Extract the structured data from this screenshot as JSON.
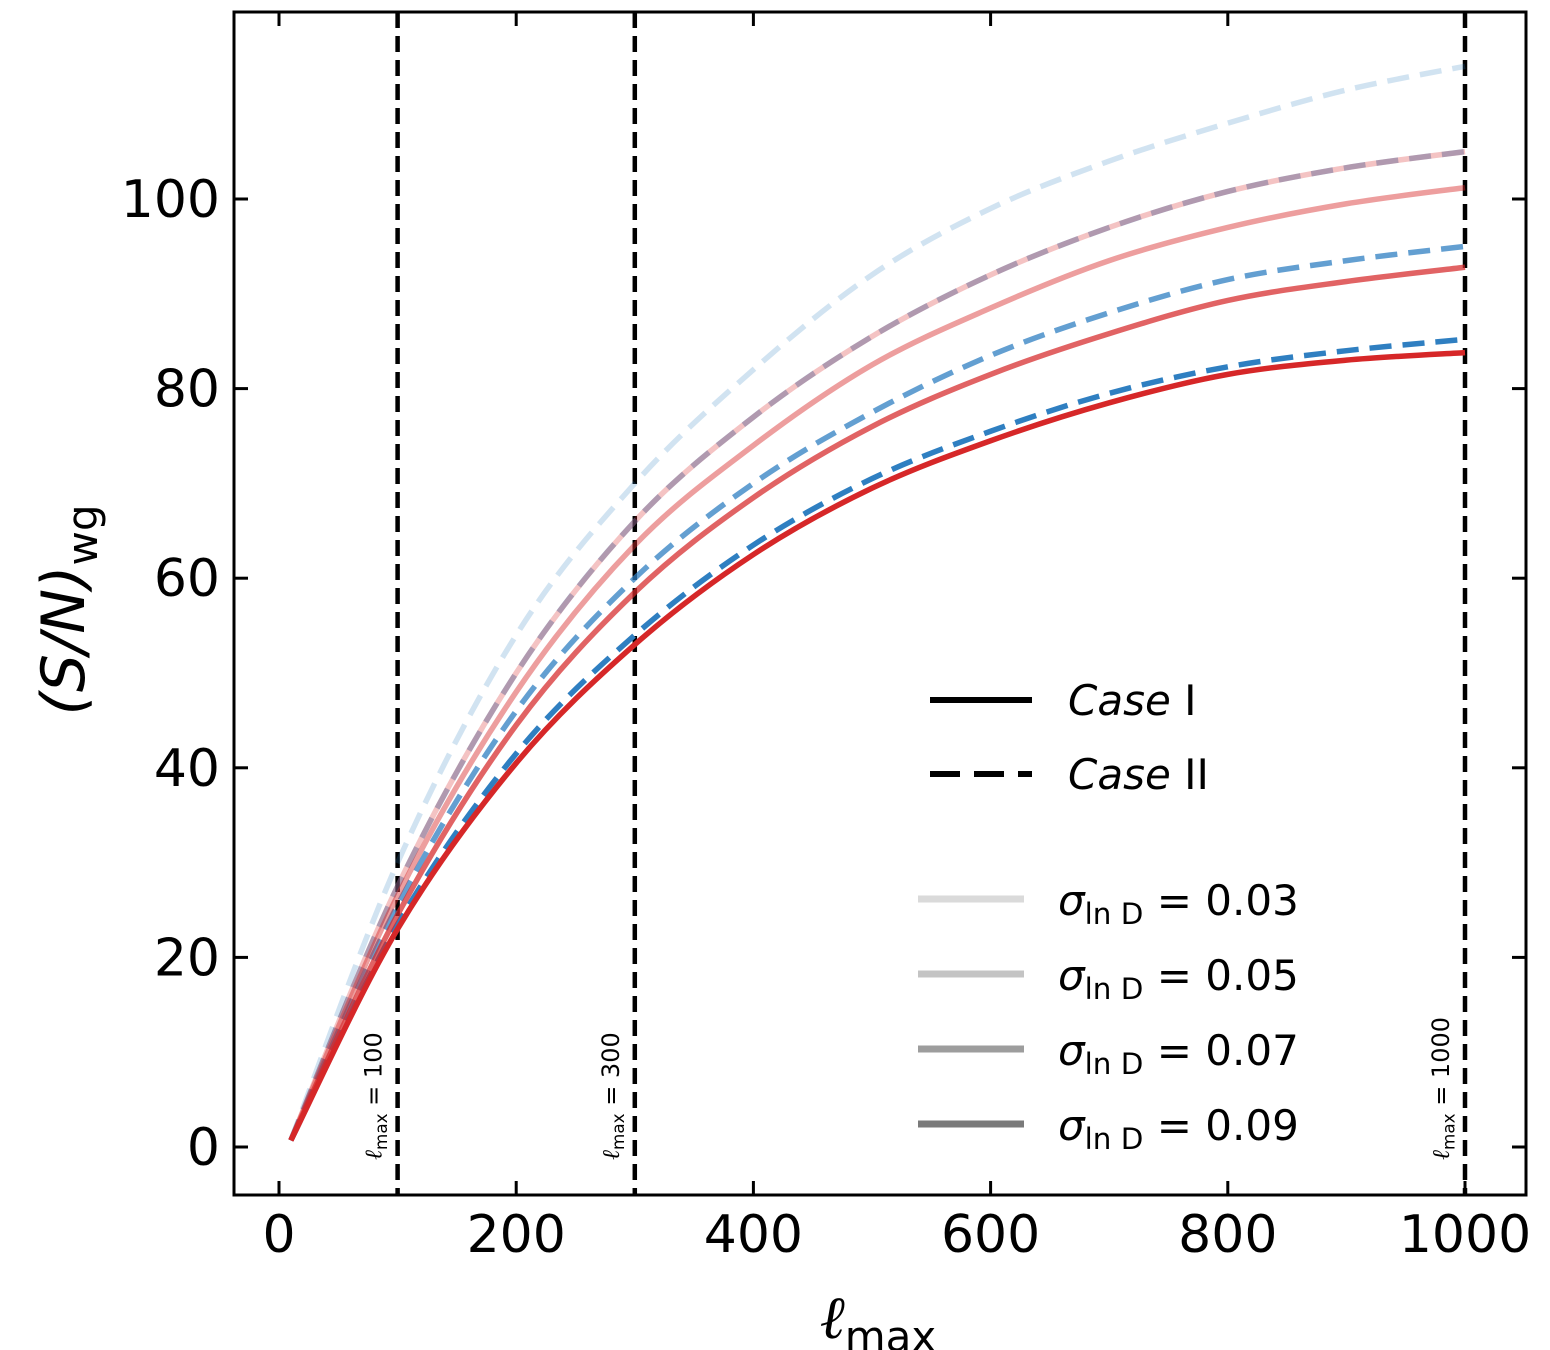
{
  "chart_data": {
    "type": "line",
    "title": "",
    "xlabel": {
      "symbol": "ℓ",
      "sub": "max"
    },
    "ylabel": {
      "text": "(S/N)",
      "sub": "wg"
    },
    "xlim": [
      -40,
      1050
    ],
    "ylim": [
      -5,
      120
    ],
    "xticks": [
      0,
      200,
      400,
      600,
      800,
      1000
    ],
    "yticks": [
      0,
      20,
      40,
      60,
      80,
      100
    ],
    "vlines": [
      {
        "x": 100,
        "label_symbol": "ℓ",
        "label_sub": "max",
        "label_rest": " = 100"
      },
      {
        "x": 300,
        "label_symbol": "ℓ",
        "label_sub": "max",
        "label_rest": " = 300"
      },
      {
        "x": 1000,
        "label_symbol": "ℓ",
        "label_sub": "max",
        "label_rest": " = 1000"
      }
    ],
    "series": [
      {
        "name": "Case II, σ = 0.03",
        "case": "II",
        "sigma": 0.03,
        "color": "#2f7fc1",
        "opacity": 0.22,
        "x": [
          10,
          100,
          200,
          300,
          400,
          500,
          600,
          700,
          800,
          900,
          1000
        ],
        "y": [
          0.7,
          30,
          54,
          70,
          82,
          92,
          99,
          104,
          108,
          111.5,
          114
        ]
      },
      {
        "name": "Case II, σ = 0.05",
        "case": "II",
        "sigma": 0.05,
        "color": "#2f7fc1",
        "opacity": 0.45,
        "x": [
          10,
          100,
          200,
          300,
          400,
          500,
          600,
          700,
          800,
          900,
          1000
        ],
        "y": [
          0.7,
          27.5,
          50,
          66,
          77,
          85.5,
          92,
          97,
          100.8,
          103.3,
          105
        ]
      },
      {
        "name": "Case II, σ = 0.07",
        "case": "II",
        "sigma": 0.07,
        "color": "#2f7fc1",
        "opacity": 0.75,
        "x": [
          10,
          100,
          200,
          300,
          400,
          500,
          600,
          700,
          800,
          900,
          1000
        ],
        "y": [
          0.7,
          25.5,
          46,
          60,
          70,
          77.5,
          83.5,
          88,
          91.5,
          93.5,
          95
        ]
      },
      {
        "name": "Case II, σ = 0.09",
        "case": "II",
        "sigma": 0.09,
        "color": "#2f7fc1",
        "opacity": 1.0,
        "x": [
          10,
          100,
          200,
          300,
          400,
          500,
          600,
          700,
          800,
          900,
          1000
        ],
        "y": [
          0.7,
          23.5,
          41.5,
          54,
          63.5,
          70.5,
          75.5,
          79.5,
          82.3,
          84,
          85.2
        ]
      },
      {
        "name": "Case I, σ = 0.03",
        "case": "I",
        "sigma": 0.03,
        "color": "#d62728",
        "opacity": 0.28,
        "x": [
          10,
          100,
          200,
          300,
          400,
          500,
          600,
          700,
          800,
          900,
          1000
        ],
        "y": [
          0.7,
          27.5,
          50,
          66,
          77,
          85.5,
          92,
          97,
          100.8,
          103.3,
          105
        ]
      },
      {
        "name": "Case I, σ = 0.05",
        "case": "I",
        "sigma": 0.05,
        "color": "#d62728",
        "opacity": 0.45,
        "x": [
          10,
          100,
          200,
          300,
          400,
          500,
          600,
          700,
          800,
          900,
          1000
        ],
        "y": [
          0.7,
          26.5,
          48,
          63.5,
          74,
          82.5,
          88.5,
          93.5,
          97,
          99.5,
          101.2
        ]
      },
      {
        "name": "Case I, σ = 0.07",
        "case": "I",
        "sigma": 0.07,
        "color": "#d62728",
        "opacity": 0.72,
        "x": [
          10,
          100,
          200,
          300,
          400,
          500,
          600,
          700,
          800,
          900,
          1000
        ],
        "y": [
          0.7,
          24.5,
          44.5,
          58.5,
          68.5,
          76,
          81.5,
          85.8,
          89.3,
          91.3,
          92.8
        ]
      },
      {
        "name": "Case I, σ = 0.09",
        "case": "I",
        "sigma": 0.09,
        "color": "#d62728",
        "opacity": 1.0,
        "x": [
          10,
          100,
          200,
          300,
          400,
          500,
          600,
          700,
          800,
          900,
          1000
        ],
        "y": [
          0.7,
          23,
          40.5,
          53,
          62.5,
          69.5,
          74.5,
          78.5,
          81.5,
          83,
          83.8
        ]
      }
    ],
    "legend": {
      "placement": "lower-right",
      "line_style_entries": [
        {
          "style": "solid",
          "label_italic": "Case",
          "label_roman": " I"
        },
        {
          "style": "dashed",
          "label_italic": "Case",
          "label_roman": " II"
        }
      ],
      "sigma_entries": [
        {
          "color": "#dadada",
          "label_sym": "σ",
          "label_sub": "ln D",
          "label_rest": " = 0.03"
        },
        {
          "color": "#c4c4c4",
          "label_sym": "σ",
          "label_sub": "ln D",
          "label_rest": " = 0.05"
        },
        {
          "color": "#9d9d9d",
          "label_sym": "σ",
          "label_sub": "ln D",
          "label_rest": " = 0.07"
        },
        {
          "color": "#7a7a7a",
          "label_sym": "σ",
          "label_sub": "ln D",
          "label_rest": " = 0.09"
        }
      ]
    }
  }
}
